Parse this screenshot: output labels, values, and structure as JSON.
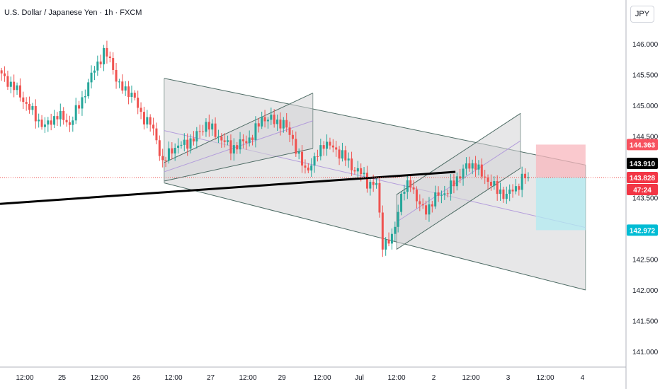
{
  "header": {
    "title": "U.S. Dollar / Japanese Yen · 1h · FXCM",
    "currency_button": "JPY"
  },
  "colors": {
    "up": "#26a69a",
    "down": "#ef5350",
    "channel_fill": "#d3d4d6",
    "channel_line": "#4d6b64",
    "midline": "#b39ddb",
    "trendline": "#000000",
    "stop_zone": "#f8b7bd",
    "target_zone": "#b2ebf2"
  },
  "chart_data": {
    "type": "candlestick",
    "y_axis": {
      "ylim": [
        140.72,
        146.6
      ],
      "ticks": [
        "146.000",
        "145.500",
        "145.000",
        "144.500",
        "143.500",
        "142.500",
        "142.000",
        "141.500",
        "141.000"
      ],
      "tick_values": [
        146.0,
        145.5,
        145.0,
        144.5,
        143.5,
        142.5,
        142.0,
        141.5,
        141.0
      ]
    },
    "x_axis": {
      "labels": [
        "12:00",
        "25",
        "12:00",
        "26",
        "12:00",
        "27",
        "12:00",
        "29",
        "12:00",
        "Jul",
        "12:00",
        "2",
        "12:00",
        "3",
        "12:00",
        "4"
      ],
      "bar_index": [
        8,
        20,
        32,
        44,
        56,
        68,
        80,
        91,
        104,
        116,
        128,
        140,
        152,
        164,
        176,
        188
      ]
    },
    "price_labels": [
      {
        "label": "144.363",
        "value": 144.363,
        "kind": "stop"
      },
      {
        "label": "143.910",
        "value": 143.91,
        "kind": "trendline"
      },
      {
        "label": "143.828",
        "value": 143.828,
        "kind": "last"
      },
      {
        "label": "47:24",
        "value": 143.828,
        "kind": "countdown"
      },
      {
        "label": "142.972",
        "value": 142.972,
        "kind": "target"
      }
    ],
    "ohlc_anchors": [
      [
        0,
        145.48
      ],
      [
        4,
        145.3
      ],
      [
        8,
        145.02
      ],
      [
        12,
        144.75
      ],
      [
        14,
        144.65
      ],
      [
        18,
        144.85
      ],
      [
        22,
        144.7
      ],
      [
        26,
        145.1
      ],
      [
        30,
        145.6
      ],
      [
        33,
        145.85
      ],
      [
        35,
        145.75
      ],
      [
        38,
        145.3
      ],
      [
        42,
        145.2
      ],
      [
        45,
        144.85
      ],
      [
        48,
        144.7
      ],
      [
        50,
        144.45
      ],
      [
        52,
        144.05
      ],
      [
        55,
        144.3
      ],
      [
        58,
        144.35
      ],
      [
        62,
        144.45
      ],
      [
        66,
        144.7
      ],
      [
        70,
        144.5
      ],
      [
        74,
        144.3
      ],
      [
        78,
        144.4
      ],
      [
        81,
        144.5
      ],
      [
        84,
        144.8
      ],
      [
        88,
        144.75
      ],
      [
        91,
        144.7
      ],
      [
        94,
        144.45
      ],
      [
        96,
        144.15
      ],
      [
        98,
        143.95
      ],
      [
        101,
        144.1
      ],
      [
        104,
        144.4
      ],
      [
        107,
        144.3
      ],
      [
        110,
        144.2
      ],
      [
        113,
        144.0
      ],
      [
        116,
        143.9
      ],
      [
        118,
        143.75
      ],
      [
        121,
        143.7
      ],
      [
        123,
        142.75
      ],
      [
        126,
        142.82
      ],
      [
        129,
        143.55
      ],
      [
        132,
        143.75
      ],
      [
        135,
        143.35
      ],
      [
        137,
        143.3
      ],
      [
        141,
        143.55
      ],
      [
        144,
        143.6
      ],
      [
        147,
        143.82
      ],
      [
        150,
        144.0
      ],
      [
        153,
        144.05
      ],
      [
        155,
        143.85
      ],
      [
        158,
        143.75
      ],
      [
        160,
        143.6
      ],
      [
        163,
        143.55
      ],
      [
        166,
        143.65
      ],
      [
        168,
        143.82
      ],
      [
        170,
        143.83
      ]
    ],
    "trendline": {
      "from": [
        0,
        143.4
      ],
      "to": [
        147,
        143.92
      ]
    },
    "channels": [
      {
        "name": "",
        "upper": [
          [
            53,
            145.44
          ],
          [
            189,
            144.03
          ]
        ],
        "lower": [
          [
            53,
            143.74
          ],
          [
            189,
            142.0
          ]
        ]
      },
      {
        "name": "",
        "upper": [
          [
            53,
            144.07
          ],
          [
            101,
            145.2
          ]
        ],
        "lower": [
          [
            53,
            143.77
          ],
          [
            101,
            144.3
          ]
        ]
      },
      {
        "name": "",
        "upper": [
          [
            128,
            143.55
          ],
          [
            168,
            144.87
          ]
        ],
        "lower": [
          [
            128,
            142.66
          ],
          [
            168,
            143.98
          ]
        ]
      }
    ],
    "position": {
      "entry": 143.828,
      "stop": 144.363,
      "target": 142.972,
      "start_bar": 173,
      "end_bar": 189
    }
  }
}
